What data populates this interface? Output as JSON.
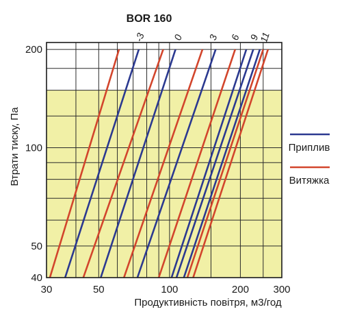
{
  "chart_data": {
    "type": "line",
    "title": "BOR 160",
    "xlabel": "Продуктивність повітря, м3/год",
    "ylabel": "Втрати тиску, Па",
    "x_scale": "log",
    "y_scale": "log",
    "xlim": [
      30,
      300
    ],
    "ylim": [
      40,
      210
    ],
    "x_ticks": [
      30,
      50,
      100,
      200,
      300
    ],
    "x_tick_labels": [
      "30",
      "50",
      "100",
      "200",
      "300"
    ],
    "y_ticks": [
      40,
      50,
      100,
      200
    ],
    "y_tick_labels": [
      "40",
      "50",
      "100",
      "200"
    ],
    "grid": true,
    "shaded_band_y": [
      40,
      150
    ],
    "shaded_color": "#f1f0a6",
    "legend_position": "right",
    "series_colors": {
      "Приплив": "#2b3990",
      "Витяжка": "#d2452c"
    },
    "legend": [
      {
        "name": "Приплив",
        "color": "#2b3990"
      },
      {
        "name": "Витяжка",
        "color": "#d2452c"
      }
    ],
    "series": [
      {
        "name": "Витяжка",
        "x": [
          31,
          61
        ],
        "y": [
          40,
          200
        ]
      },
      {
        "name": "Приплив",
        "x": [
          36,
          74
        ],
        "y": [
          40,
          200
        ]
      },
      {
        "name": "Витяжка",
        "x": [
          43,
          94
        ],
        "y": [
          40,
          200
        ]
      },
      {
        "name": "Приплив",
        "x": [
          51,
          106
        ],
        "y": [
          40,
          200
        ]
      },
      {
        "name": "Витяжка",
        "x": [
          64,
          138
        ],
        "y": [
          40,
          200
        ]
      },
      {
        "name": "Приплив",
        "x": [
          73,
          157
        ],
        "y": [
          40,
          200
        ]
      },
      {
        "name": "Витяжка",
        "x": [
          90,
          190
        ],
        "y": [
          40,
          200
        ]
      },
      {
        "name": "Приплив",
        "x": [
          102,
          212
        ],
        "y": [
          40,
          200
        ]
      },
      {
        "name": "Приплив",
        "x": [
          107,
          227
        ],
        "y": [
          40,
          200
        ]
      },
      {
        "name": "Приплив",
        "x": [
          115,
          242
        ],
        "y": [
          40,
          200
        ]
      },
      {
        "name": "Витяжка",
        "x": [
          119,
          250
        ],
        "y": [
          40,
          200
        ]
      },
      {
        "name": "Витяжка",
        "x": [
          126,
          262
        ],
        "y": [
          40,
          200
        ]
      }
    ],
    "line_labels": [
      {
        "text": "-3",
        "x": 77
      },
      {
        "text": "0",
        "x": 112
      },
      {
        "text": "3",
        "x": 158
      },
      {
        "text": "6",
        "x": 196
      },
      {
        "text": "9",
        "x": 236
      },
      {
        "text": "11",
        "x": 262
      }
    ]
  }
}
